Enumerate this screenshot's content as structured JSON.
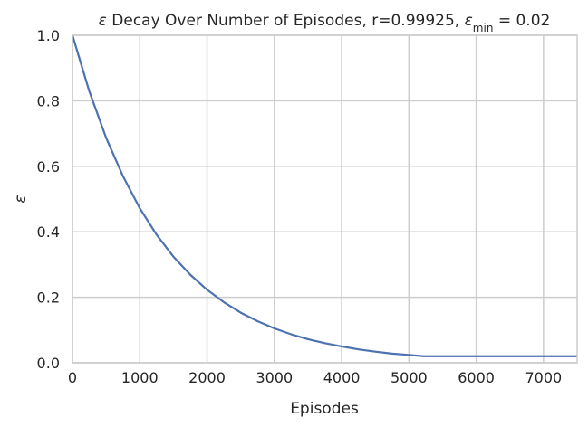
{
  "chart_data": {
    "type": "line",
    "title": {
      "eps1": "ε",
      "main": " Decay Over Number of Episodes, r=0.99925, ",
      "eps2": "ε",
      "sub": "min",
      "tail": " = 0.02"
    },
    "xlabel": "Episodes",
    "ylabel": "ε",
    "xlim": [
      0,
      7500
    ],
    "ylim": [
      0,
      1.0
    ],
    "x_ticks": [
      0,
      1000,
      2000,
      3000,
      4000,
      5000,
      6000,
      7000
    ],
    "x_tick_labels": [
      "0",
      "1000",
      "2000",
      "3000",
      "4000",
      "5000",
      "6000",
      "7000"
    ],
    "y_ticks": [
      0.0,
      0.2,
      0.4,
      0.6,
      0.8,
      1.0
    ],
    "y_tick_labels": [
      "0.0",
      "0.2",
      "0.4",
      "0.6",
      "0.8",
      "1.0"
    ],
    "grid": true,
    "series": [
      {
        "color": "#4c72b0",
        "x": [
          0,
          250,
          500,
          750,
          1000,
          1250,
          1500,
          1750,
          2000,
          2250,
          2500,
          2750,
          3000,
          3250,
          3500,
          3750,
          4000,
          4250,
          4500,
          4750,
          5000,
          5216,
          5500,
          6000,
          6500,
          7000,
          7500
        ],
        "y": [
          1.0,
          0.829,
          0.687,
          0.57,
          0.472,
          0.391,
          0.324,
          0.269,
          0.223,
          0.185,
          0.153,
          0.127,
          0.105,
          0.087,
          0.072,
          0.06,
          0.05,
          0.041,
          0.034,
          0.028,
          0.024,
          0.02,
          0.02,
          0.02,
          0.02,
          0.02,
          0.02
        ]
      }
    ]
  }
}
